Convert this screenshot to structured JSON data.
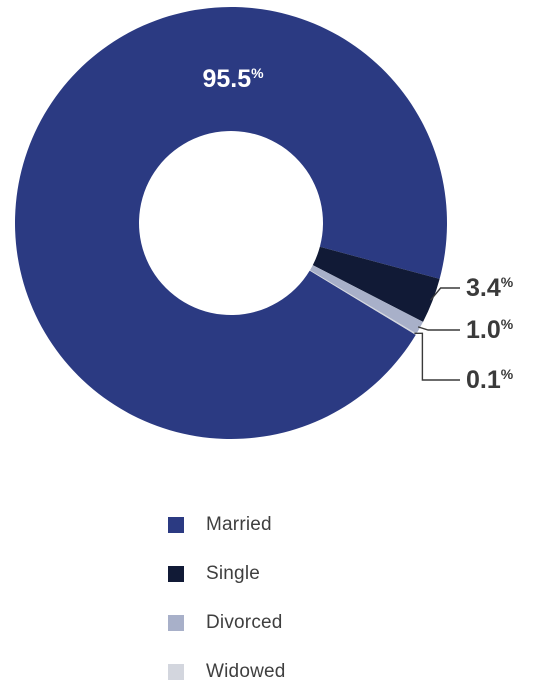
{
  "chart_data": {
    "type": "pie",
    "variant": "donut",
    "categories": [
      "Married",
      "Single",
      "Divorced",
      "Widowed"
    ],
    "values": [
      95.5,
      3.4,
      1.0,
      0.1
    ],
    "value_labels": [
      "95.5",
      "3.4",
      "1.0",
      "0.1"
    ],
    "value_unit": "%",
    "colors": [
      "#2b3a82",
      "#111a36",
      "#a8b0c9",
      "#d3d6de"
    ],
    "legend": {
      "position": "bottom"
    }
  },
  "legend": {
    "items": [
      {
        "label": "Married",
        "color": "#2b3a82"
      },
      {
        "label": "Single",
        "color": "#111a36"
      },
      {
        "label": "Divorced",
        "color": "#a8b0c9"
      },
      {
        "label": "Widowed",
        "color": "#d3d6de"
      }
    ]
  }
}
